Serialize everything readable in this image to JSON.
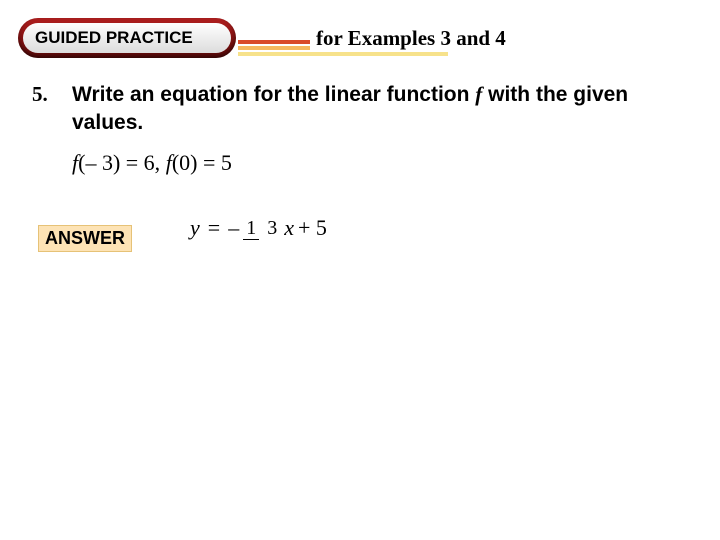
{
  "header": {
    "badge": "GUIDED PRACTICE",
    "right": "for Examples 3 and 4"
  },
  "question": {
    "number": "5.",
    "line1a": "Write an equation for the linear function ",
    "line1b": "f",
    "line1c": " with the given values.",
    "given_f1_open": "f",
    "given_f1_arg": "(– 3) = 6,  ",
    "given_f2_open": "f",
    "given_f2_arg": "(0) = 5"
  },
  "answer": {
    "label": "ANSWER",
    "y": "y",
    "eq": "=",
    "minus": "–",
    "num": "1",
    "den": "3",
    "x": "x",
    "tail": " + 5"
  }
}
